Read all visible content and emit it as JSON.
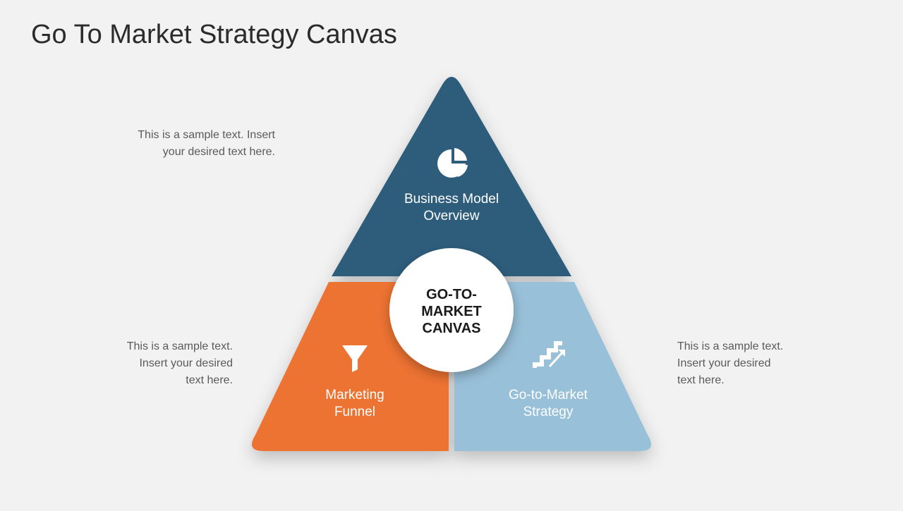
{
  "title": "Go To Market Strategy Canvas",
  "background_color": "#f2f2f2",
  "annotations": {
    "top": {
      "line1": "This is a sample text. Insert",
      "line2": "your desired text here."
    },
    "left": {
      "line1": "This is a sample text.",
      "line2": "Insert your desired",
      "line3": "text here."
    },
    "right": {
      "line1": "This is a sample text.",
      "line2": "Insert your desired",
      "line3": "text here."
    }
  },
  "triangle": {
    "type": "infographic",
    "center_label": {
      "l1": "GO-TO-",
      "l2": "MARKET",
      "l3": "CANVAS"
    },
    "center_circle": {
      "fill": "#ffffff",
      "radius": 88
    },
    "gap_color": "#f2f2f2",
    "segments": {
      "top": {
        "fill": "#2f5d7c",
        "label_l1": "Business Model",
        "label_l2": "Overview",
        "icon": "pie-chart"
      },
      "left": {
        "fill": "#ed7331",
        "label_l1": "Marketing",
        "label_l2": "Funnel",
        "icon": "funnel"
      },
      "right": {
        "fill": "#98c0d9",
        "label_l1": "Go-to-Market",
        "label_l2": "Strategy",
        "icon": "stairs"
      }
    }
  }
}
